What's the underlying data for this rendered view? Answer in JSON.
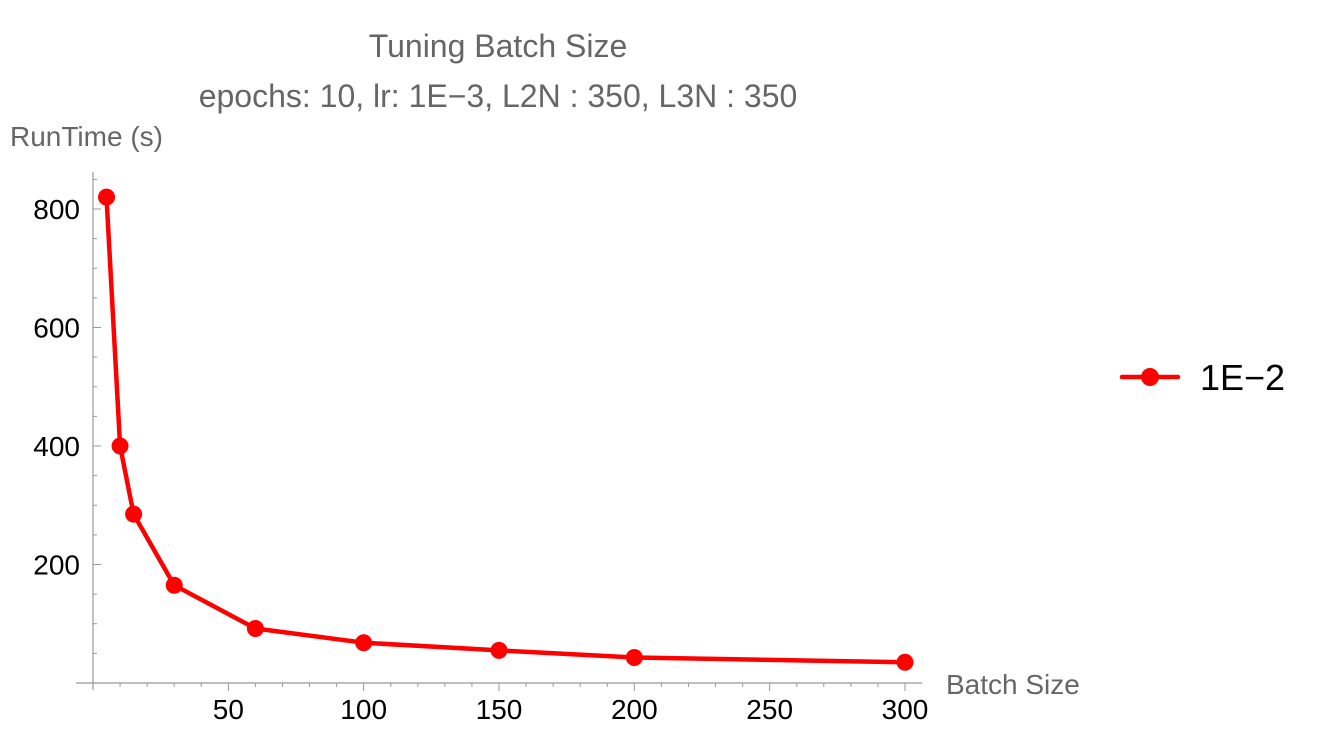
{
  "chart_data": {
    "type": "line",
    "title": "Tuning Batch Size",
    "subtitle": "epochs: 10, lr: 1E−3, L2N : 350, L3N : 350",
    "xlabel": "Batch Size",
    "ylabel": "RunTime (s)",
    "xlim": [
      0,
      300
    ],
    "ylim": [
      0,
      850
    ],
    "x_ticks": [
      50,
      100,
      150,
      200,
      250,
      300
    ],
    "y_ticks": [
      200,
      400,
      600,
      800
    ],
    "grid": false,
    "legend_position": "right",
    "series": [
      {
        "name": "1E−2",
        "color": "#ff0000",
        "marker": "circle",
        "x": [
          5,
          10,
          15,
          30,
          60,
          100,
          150,
          200,
          300
        ],
        "y": [
          820,
          400,
          285,
          165,
          92,
          68,
          55,
          43,
          35
        ]
      }
    ]
  }
}
